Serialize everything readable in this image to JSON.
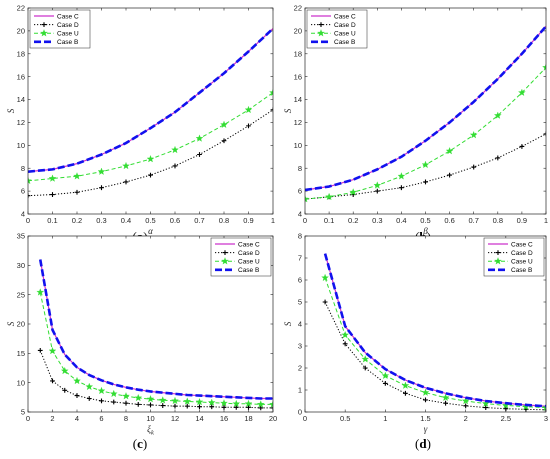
{
  "chart_data": [
    {
      "id": "a",
      "type": "line",
      "caption": "(a)",
      "xlabel": "α",
      "ylabel": "S",
      "xlim": [
        0,
        1
      ],
      "ylim": [
        4,
        22
      ],
      "xticks": [
        0,
        0.1,
        0.2,
        0.3,
        0.4,
        0.5,
        0.6,
        0.7,
        0.8,
        0.9,
        1
      ],
      "xtick_labels": [
        "0",
        "0.1",
        "0.2",
        "0.3",
        "0.4",
        "0.5",
        "0.6",
        "0.7",
        "0.8",
        "0.9",
        "1"
      ],
      "yticks": [
        4,
        6,
        8,
        10,
        12,
        14,
        16,
        18,
        20,
        22
      ],
      "yticks_labels": [
        "4",
        "6",
        "8",
        "10",
        "12",
        "14",
        "16",
        "18",
        "20",
        "22"
      ],
      "legend_position": "top-left",
      "x": [
        0,
        0.1,
        0.2,
        0.3,
        0.4,
        0.5,
        0.6,
        0.7,
        0.8,
        0.9,
        1
      ],
      "series": [
        {
          "name": "Case C",
          "color": "#cc33cc",
          "style": "solid",
          "marker": "none",
          "values": [
            7.7,
            7.9,
            8.4,
            9.2,
            10.2,
            11.5,
            12.9,
            14.6,
            16.3,
            18.2,
            20.2
          ]
        },
        {
          "name": "Case D",
          "color": "#000000",
          "style": "dotted",
          "marker": "plus",
          "values": [
            5.6,
            5.7,
            5.9,
            6.3,
            6.8,
            7.4,
            8.2,
            9.2,
            10.4,
            11.7,
            13.1
          ]
        },
        {
          "name": "Case U",
          "color": "#33dd33",
          "style": "dashed",
          "marker": "star",
          "values": [
            6.9,
            7.1,
            7.3,
            7.7,
            8.2,
            8.8,
            9.6,
            10.6,
            11.8,
            13.1,
            14.6
          ]
        },
        {
          "name": "Case B",
          "color": "#1111ee",
          "style": "bigdash",
          "marker": "none",
          "values": [
            7.7,
            7.9,
            8.4,
            9.2,
            10.2,
            11.5,
            12.9,
            14.6,
            16.3,
            18.2,
            20.2
          ]
        }
      ]
    },
    {
      "id": "b",
      "type": "line",
      "caption": "(b)",
      "xlabel": "β",
      "ylabel": "S",
      "xlim": [
        0,
        1
      ],
      "ylim": [
        4,
        22
      ],
      "xticks": [
        0,
        0.1,
        0.2,
        0.3,
        0.4,
        0.5,
        0.6,
        0.7,
        0.8,
        0.9,
        1
      ],
      "xtick_labels": [
        "0",
        "0.1",
        "0.2",
        "0.3",
        "0.4",
        "0.5",
        "0.6",
        "0.7",
        "0.8",
        "0.9",
        "1"
      ],
      "yticks": [
        4,
        6,
        8,
        10,
        12,
        14,
        16,
        18,
        20,
        22
      ],
      "yticks_labels": [
        "4",
        "6",
        "8",
        "10",
        "12",
        "14",
        "16",
        "18",
        "20",
        "22"
      ],
      "legend_position": "top-left",
      "x": [
        0,
        0.1,
        0.2,
        0.3,
        0.4,
        0.5,
        0.6,
        0.7,
        0.8,
        0.9,
        1
      ],
      "series": [
        {
          "name": "Case C",
          "color": "#cc33cc",
          "style": "solid",
          "marker": "none",
          "values": [
            6.1,
            6.4,
            7.0,
            7.9,
            9.0,
            10.4,
            12.0,
            13.8,
            15.8,
            18.0,
            20.4
          ]
        },
        {
          "name": "Case D",
          "color": "#000000",
          "style": "dotted",
          "marker": "plus",
          "values": [
            5.3,
            5.5,
            5.7,
            6.0,
            6.3,
            6.8,
            7.4,
            8.1,
            8.9,
            9.9,
            11.0
          ]
        },
        {
          "name": "Case U",
          "color": "#33dd33",
          "style": "dashed",
          "marker": "star",
          "values": [
            5.3,
            5.5,
            5.9,
            6.5,
            7.3,
            8.3,
            9.5,
            10.9,
            12.6,
            14.6,
            16.8
          ]
        },
        {
          "name": "Case B",
          "color": "#1111ee",
          "style": "bigdash",
          "marker": "none",
          "values": [
            6.1,
            6.4,
            7.0,
            7.9,
            9.0,
            10.4,
            12.0,
            13.8,
            15.8,
            18.0,
            20.4
          ]
        }
      ]
    },
    {
      "id": "c",
      "type": "line",
      "caption": "(c)",
      "xlabel": "ξ",
      "xlabel_sub": "k",
      "ylabel": "S",
      "xlim": [
        0,
        20
      ],
      "ylim": [
        5,
        35
      ],
      "xticks": [
        0,
        2,
        4,
        6,
        8,
        10,
        12,
        14,
        16,
        18,
        20
      ],
      "xtick_labels": [
        "0",
        "2",
        "4",
        "6",
        "8",
        "10",
        "12",
        "14",
        "16",
        "18",
        "20"
      ],
      "yticks": [
        5,
        10,
        15,
        20,
        25,
        30,
        35
      ],
      "yticks_labels": [
        "5",
        "10",
        "15",
        "20",
        "25",
        "30",
        "35"
      ],
      "legend_position": "top-right",
      "x": [
        1,
        2,
        3,
        4,
        5,
        6,
        7,
        8,
        9,
        10,
        11,
        12,
        13,
        14,
        15,
        16,
        17,
        18,
        19,
        20
      ],
      "series": [
        {
          "name": "Case C",
          "color": "#cc33cc",
          "style": "solid",
          "marker": "none",
          "values": [
            31.0,
            19.0,
            14.8,
            12.6,
            11.3,
            10.4,
            9.7,
            9.2,
            8.8,
            8.5,
            8.3,
            8.1,
            7.9,
            7.8,
            7.7,
            7.6,
            7.5,
            7.4,
            7.3,
            7.3
          ]
        },
        {
          "name": "Case D",
          "color": "#000000",
          "style": "dotted",
          "marker": "plus",
          "values": [
            15.5,
            10.3,
            8.7,
            7.8,
            7.3,
            6.9,
            6.7,
            6.5,
            6.3,
            6.2,
            6.1,
            6.0,
            6.0,
            5.9,
            5.9,
            5.8,
            5.8,
            5.8,
            5.7,
            5.7
          ]
        },
        {
          "name": "Case U",
          "color": "#33dd33",
          "style": "dashed",
          "marker": "star",
          "values": [
            25.4,
            15.4,
            12.0,
            10.3,
            9.3,
            8.6,
            8.1,
            7.7,
            7.4,
            7.2,
            7.0,
            6.9,
            6.8,
            6.7,
            6.6,
            6.5,
            6.4,
            6.4,
            6.3,
            6.3
          ]
        },
        {
          "name": "Case B",
          "color": "#1111ee",
          "style": "bigdash",
          "marker": "none",
          "values": [
            31.0,
            19.0,
            14.8,
            12.6,
            11.3,
            10.4,
            9.7,
            9.2,
            8.8,
            8.5,
            8.3,
            8.1,
            7.9,
            7.8,
            7.7,
            7.6,
            7.5,
            7.4,
            7.3,
            7.3
          ]
        }
      ]
    },
    {
      "id": "d",
      "type": "line",
      "caption": "(d)",
      "xlabel": "γ",
      "ylabel": "S",
      "xlim": [
        0,
        3
      ],
      "ylim": [
        0,
        8
      ],
      "xticks": [
        0,
        0.5,
        1,
        1.5,
        2,
        2.5,
        3
      ],
      "xtick_labels": [
        "0",
        "0.5",
        "1",
        "1.5",
        "2",
        "2.5",
        "3"
      ],
      "yticks": [
        0,
        1,
        2,
        3,
        4,
        5,
        6,
        7,
        8
      ],
      "yticks_labels": [
        "0",
        "1",
        "2",
        "3",
        "4",
        "5",
        "6",
        "7",
        "8"
      ],
      "legend_position": "top-right",
      "x": [
        0.25,
        0.5,
        0.75,
        1.0,
        1.25,
        1.5,
        1.75,
        2.0,
        2.25,
        2.5,
        2.75,
        3.0
      ],
      "series": [
        {
          "name": "Case C",
          "color": "#cc33cc",
          "style": "solid",
          "marker": "none",
          "values": [
            7.2,
            3.9,
            2.7,
            1.95,
            1.45,
            1.1,
            0.85,
            0.65,
            0.5,
            0.4,
            0.32,
            0.26
          ]
        },
        {
          "name": "Case D",
          "color": "#000000",
          "style": "dotted",
          "marker": "plus",
          "values": [
            5.0,
            3.1,
            2.0,
            1.3,
            0.85,
            0.55,
            0.4,
            0.28,
            0.2,
            0.15,
            0.12,
            0.1
          ]
        },
        {
          "name": "Case U",
          "color": "#33dd33",
          "style": "dashed",
          "marker": "star",
          "values": [
            6.1,
            3.5,
            2.4,
            1.65,
            1.2,
            0.88,
            0.65,
            0.5,
            0.38,
            0.3,
            0.24,
            0.2
          ]
        },
        {
          "name": "Case B",
          "color": "#1111ee",
          "style": "bigdash",
          "marker": "none",
          "values": [
            7.2,
            3.9,
            2.7,
            1.95,
            1.45,
            1.1,
            0.85,
            0.65,
            0.5,
            0.4,
            0.32,
            0.26
          ]
        }
      ]
    }
  ]
}
